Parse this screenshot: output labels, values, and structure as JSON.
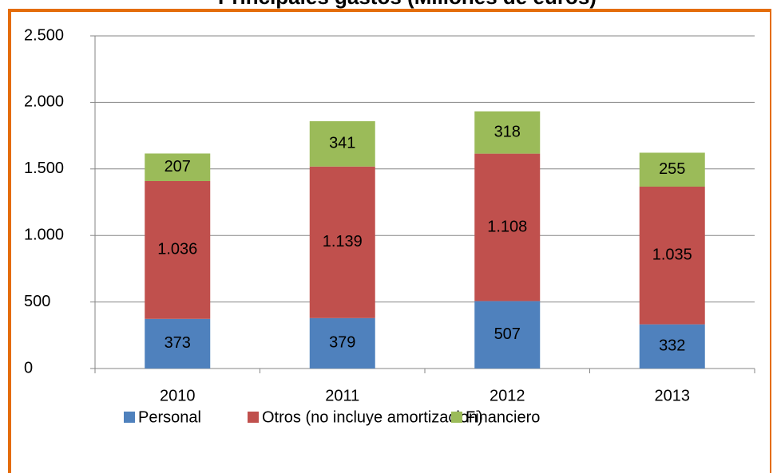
{
  "chart_data": {
    "type": "stacked_bar",
    "title": "Principales gastos (Millones de euros)",
    "categories": [
      "2010",
      "2011",
      "2012",
      "2013"
    ],
    "series": [
      {
        "name": "Personal",
        "color": "#4f81bd",
        "values": [
          373,
          379,
          507,
          332
        ]
      },
      {
        "name": "Otros (no incluye amortizacion)",
        "color": "#c0504d",
        "values": [
          1036,
          1139,
          1108,
          1035
        ],
        "value_labels": [
          "1.036",
          "1.139",
          "1.108",
          "1.035"
        ]
      },
      {
        "name": "Financiero",
        "color": "#9bbb59",
        "values": [
          207,
          341,
          318,
          255
        ]
      }
    ],
    "ylim": [
      0,
      2500
    ],
    "yticks": [
      0,
      500,
      {
        "value": 1000,
        "label": "1.000"
      },
      {
        "value": 1500,
        "label": "1.500"
      },
      {
        "value": 2000,
        "label": "2.000"
      },
      {
        "value": 2500,
        "label": "2.500"
      }
    ],
    "grid": true,
    "legend": "bottom"
  }
}
